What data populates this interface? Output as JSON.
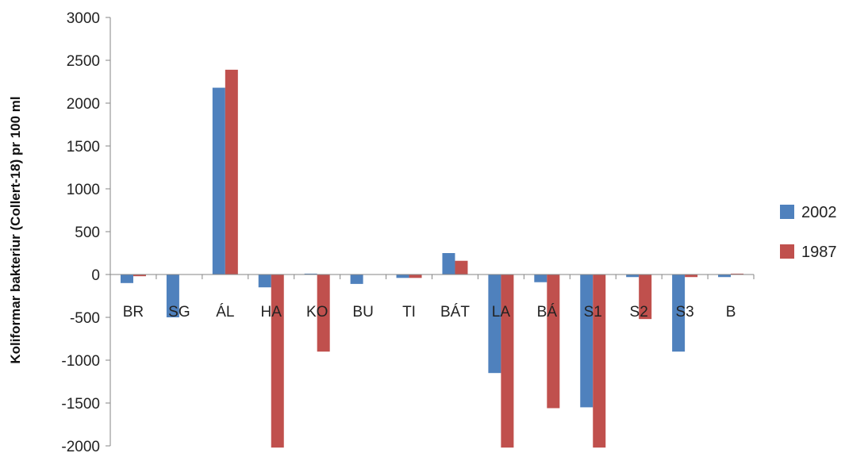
{
  "chart_data": {
    "type": "bar",
    "title": "",
    "xlabel": "",
    "ylabel": "Koliformar bakteriur (Collert-18) pr 100 ml",
    "ylim": [
      -2000,
      3000
    ],
    "yticks": [
      3000,
      2500,
      2000,
      1500,
      1000,
      500,
      0,
      -500,
      -1000,
      -1500,
      -2000
    ],
    "grid": false,
    "legend_position": "right",
    "categories": [
      "BR",
      "SG",
      "ÁL",
      "HA",
      "KO",
      "BU",
      "TI",
      "BÁT",
      "LA",
      "BÁ",
      "S1",
      "S2",
      "S3",
      "B"
    ],
    "series": [
      {
        "name": "2002",
        "color": "#4F81BD",
        "values": [
          -100,
          -500,
          2180,
          -150,
          10,
          -110,
          -40,
          250,
          -1150,
          -90,
          -1550,
          -30,
          -900,
          -30
        ]
      },
      {
        "name": "1987",
        "color": "#C0504D",
        "values": [
          -20,
          0,
          2390,
          -2020,
          -900,
          0,
          -40,
          160,
          -2020,
          -1560,
          -2020,
          -520,
          -30,
          10
        ]
      }
    ]
  }
}
